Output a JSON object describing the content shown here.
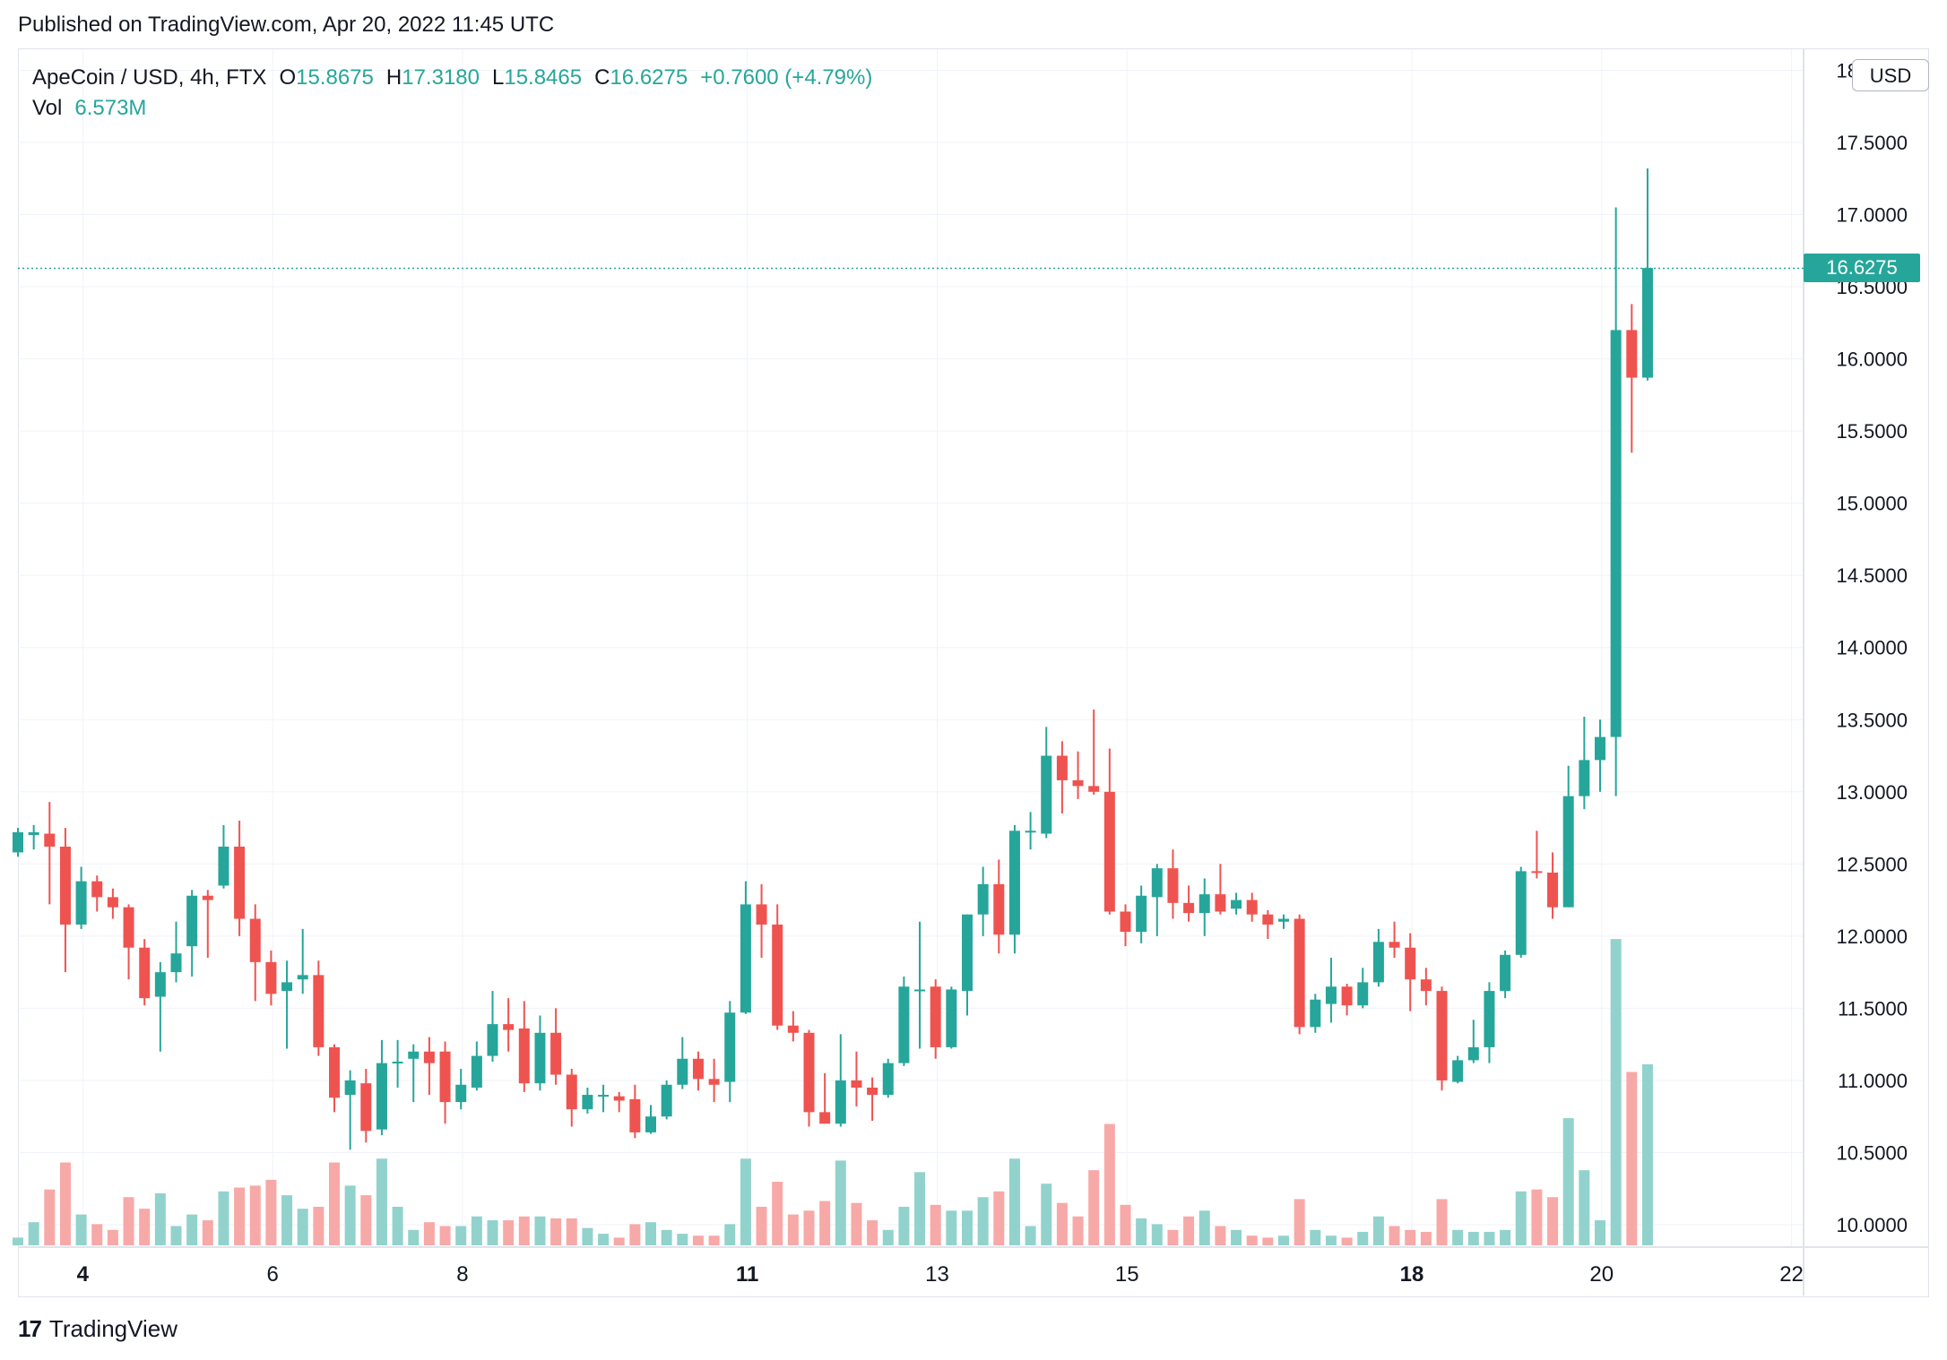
{
  "header": {
    "published": "Published on TradingView.com, Apr 20, 2022 11:45 UTC"
  },
  "legend": {
    "symbol": "ApeCoin / USD, 4h, FTX",
    "open_label": "O",
    "open": "15.8675",
    "high_label": "H",
    "high": "17.3180",
    "low_label": "L",
    "low": "15.8465",
    "close_label": "C",
    "close": "16.6275",
    "change": "+0.7600 (+4.79%)",
    "vol_label": "Vol",
    "vol": "6.573M"
  },
  "currency_button": "USD",
  "last_price_tag": "16.6275",
  "footer": {
    "logo": "17",
    "brand": "TradingView"
  },
  "colors": {
    "up": "#26a69a",
    "down": "#ef5350",
    "up_vol": "#92d2cc",
    "down_vol": "#f7a9a7",
    "grid": "#f0f3fa"
  },
  "chart_data": {
    "type": "candlestick",
    "title": "ApeCoin / USD, 4h, FTX",
    "xlabel": "",
    "ylabel": "",
    "ylim": [
      9.9,
      18.5
    ],
    "y_ticks": [
      "10.0000",
      "10.5000",
      "11.0000",
      "11.5000",
      "12.0000",
      "12.5000",
      "13.0000",
      "13.5000",
      "14.0000",
      "14.5000",
      "15.0000",
      "15.5000",
      "16.0000",
      "16.5000",
      "17.0000",
      "17.5000",
      "18.0000"
    ],
    "x_ticks": [
      {
        "label": "4",
        "idx": 4.1,
        "bold": true
      },
      {
        "label": "6",
        "idx": 16.1,
        "bold": false
      },
      {
        "label": "8",
        "idx": 28.1,
        "bold": false
      },
      {
        "label": "11",
        "idx": 46.1,
        "bold": true
      },
      {
        "label": "13",
        "idx": 58.1,
        "bold": false
      },
      {
        "label": "15",
        "idx": 70.1,
        "bold": false
      },
      {
        "label": "18",
        "idx": 88.1,
        "bold": true
      },
      {
        "label": "20",
        "idx": 100.1,
        "bold": false
      },
      {
        "label": "22",
        "idx": 112.1,
        "bold": false
      }
    ],
    "grid": true,
    "last_price": 16.6275,
    "candles": [
      {
        "o": 12.58,
        "h": 12.75,
        "l": 12.55,
        "c": 12.72,
        "v": 0.4
      },
      {
        "o": 12.7,
        "h": 12.77,
        "l": 12.6,
        "c": 12.72,
        "v": 1.2
      },
      {
        "o": 12.71,
        "h": 12.93,
        "l": 12.22,
        "c": 12.62,
        "v": 2.9
      },
      {
        "o": 12.62,
        "h": 12.75,
        "l": 11.75,
        "c": 12.08,
        "v": 4.3
      },
      {
        "o": 12.08,
        "h": 12.48,
        "l": 12.05,
        "c": 12.38,
        "v": 1.6
      },
      {
        "o": 12.38,
        "h": 12.42,
        "l": 12.17,
        "c": 12.27,
        "v": 1.1
      },
      {
        "o": 12.27,
        "h": 12.33,
        "l": 12.12,
        "c": 12.2,
        "v": 0.8
      },
      {
        "o": 12.2,
        "h": 12.22,
        "l": 11.7,
        "c": 11.92,
        "v": 2.5
      },
      {
        "o": 11.92,
        "h": 11.98,
        "l": 11.52,
        "c": 11.57,
        "v": 1.9
      },
      {
        "o": 11.58,
        "h": 11.82,
        "l": 11.2,
        "c": 11.75,
        "v": 2.7
      },
      {
        "o": 11.75,
        "h": 12.1,
        "l": 11.68,
        "c": 11.88,
        "v": 1.0
      },
      {
        "o": 11.93,
        "h": 12.32,
        "l": 11.72,
        "c": 12.28,
        "v": 1.6
      },
      {
        "o": 12.28,
        "h": 12.32,
        "l": 11.85,
        "c": 12.25,
        "v": 1.3
      },
      {
        "o": 12.35,
        "h": 12.77,
        "l": 12.33,
        "c": 12.62,
        "v": 2.8
      },
      {
        "o": 12.62,
        "h": 12.8,
        "l": 12.0,
        "c": 12.12,
        "v": 3.0
      },
      {
        "o": 12.12,
        "h": 12.22,
        "l": 11.55,
        "c": 11.82,
        "v": 3.1
      },
      {
        "o": 11.82,
        "h": 11.9,
        "l": 11.52,
        "c": 11.6,
        "v": 3.4
      },
      {
        "o": 11.62,
        "h": 11.83,
        "l": 11.22,
        "c": 11.68,
        "v": 2.6
      },
      {
        "o": 11.7,
        "h": 12.05,
        "l": 11.6,
        "c": 11.73,
        "v": 1.9
      },
      {
        "o": 11.73,
        "h": 11.83,
        "l": 11.17,
        "c": 11.23,
        "v": 2.0
      },
      {
        "o": 11.23,
        "h": 11.25,
        "l": 10.78,
        "c": 10.88,
        "v": 4.3
      },
      {
        "o": 10.9,
        "h": 11.07,
        "l": 10.52,
        "c": 11.0,
        "v": 3.1
      },
      {
        "o": 10.98,
        "h": 11.08,
        "l": 10.57,
        "c": 10.65,
        "v": 2.6
      },
      {
        "o": 10.66,
        "h": 11.28,
        "l": 10.62,
        "c": 11.12,
        "v": 4.5
      },
      {
        "o": 11.12,
        "h": 11.28,
        "l": 10.95,
        "c": 11.13,
        "v": 2.0
      },
      {
        "o": 11.15,
        "h": 11.25,
        "l": 10.85,
        "c": 11.2,
        "v": 0.8
      },
      {
        "o": 11.2,
        "h": 11.3,
        "l": 10.9,
        "c": 11.12,
        "v": 1.2
      },
      {
        "o": 11.2,
        "h": 11.27,
        "l": 10.7,
        "c": 10.85,
        "v": 1.0
      },
      {
        "o": 10.85,
        "h": 11.08,
        "l": 10.8,
        "c": 10.97,
        "v": 1.0
      },
      {
        "o": 10.95,
        "h": 11.27,
        "l": 10.93,
        "c": 11.17,
        "v": 1.5
      },
      {
        "o": 11.17,
        "h": 11.62,
        "l": 11.13,
        "c": 11.39,
        "v": 1.3
      },
      {
        "o": 11.39,
        "h": 11.57,
        "l": 11.2,
        "c": 11.35,
        "v": 1.3
      },
      {
        "o": 11.36,
        "h": 11.55,
        "l": 10.92,
        "c": 10.98,
        "v": 1.5
      },
      {
        "o": 10.98,
        "h": 11.45,
        "l": 10.93,
        "c": 11.33,
        "v": 1.5
      },
      {
        "o": 11.33,
        "h": 11.5,
        "l": 10.97,
        "c": 11.04,
        "v": 1.4
      },
      {
        "o": 11.04,
        "h": 11.08,
        "l": 10.68,
        "c": 10.8,
        "v": 1.4
      },
      {
        "o": 10.8,
        "h": 10.95,
        "l": 10.77,
        "c": 10.9,
        "v": 0.9
      },
      {
        "o": 10.89,
        "h": 10.97,
        "l": 10.78,
        "c": 10.9,
        "v": 0.6
      },
      {
        "o": 10.89,
        "h": 10.92,
        "l": 10.78,
        "c": 10.86,
        "v": 0.4
      },
      {
        "o": 10.87,
        "h": 10.97,
        "l": 10.6,
        "c": 10.64,
        "v": 1.1
      },
      {
        "o": 10.64,
        "h": 10.83,
        "l": 10.63,
        "c": 10.75,
        "v": 1.2
      },
      {
        "o": 10.75,
        "h": 11.0,
        "l": 10.73,
        "c": 10.97,
        "v": 0.8
      },
      {
        "o": 10.97,
        "h": 11.3,
        "l": 10.94,
        "c": 11.15,
        "v": 0.6
      },
      {
        "o": 11.15,
        "h": 11.2,
        "l": 10.93,
        "c": 11.01,
        "v": 0.5
      },
      {
        "o": 11.01,
        "h": 11.15,
        "l": 10.85,
        "c": 10.97,
        "v": 0.5
      },
      {
        "o": 10.99,
        "h": 11.55,
        "l": 10.85,
        "c": 11.47,
        "v": 1.1
      },
      {
        "o": 11.47,
        "h": 12.38,
        "l": 11.46,
        "c": 12.22,
        "v": 4.5
      },
      {
        "o": 12.22,
        "h": 12.36,
        "l": 11.85,
        "c": 12.08,
        "v": 2.0
      },
      {
        "o": 12.08,
        "h": 12.22,
        "l": 11.35,
        "c": 11.38,
        "v": 3.3
      },
      {
        "o": 11.38,
        "h": 11.48,
        "l": 11.27,
        "c": 11.33,
        "v": 1.6
      },
      {
        "o": 11.33,
        "h": 11.35,
        "l": 10.68,
        "c": 10.78,
        "v": 1.8
      },
      {
        "o": 10.78,
        "h": 11.05,
        "l": 10.7,
        "c": 10.7,
        "v": 2.3
      },
      {
        "o": 10.7,
        "h": 11.32,
        "l": 10.68,
        "c": 11.0,
        "v": 4.4
      },
      {
        "o": 11.0,
        "h": 11.2,
        "l": 10.82,
        "c": 10.95,
        "v": 2.2
      },
      {
        "o": 10.95,
        "h": 11.02,
        "l": 10.72,
        "c": 10.9,
        "v": 1.3
      },
      {
        "o": 10.9,
        "h": 11.15,
        "l": 10.88,
        "c": 11.12,
        "v": 0.8
      },
      {
        "o": 11.12,
        "h": 11.72,
        "l": 11.1,
        "c": 11.65,
        "v": 2.0
      },
      {
        "o": 11.62,
        "h": 12.1,
        "l": 11.22,
        "c": 11.63,
        "v": 3.8
      },
      {
        "o": 11.65,
        "h": 11.7,
        "l": 11.15,
        "c": 11.23,
        "v": 2.1
      },
      {
        "o": 11.23,
        "h": 11.65,
        "l": 11.22,
        "c": 11.63,
        "v": 1.8
      },
      {
        "o": 11.62,
        "h": 12.15,
        "l": 11.45,
        "c": 12.15,
        "v": 1.8
      },
      {
        "o": 12.15,
        "h": 12.48,
        "l": 12.0,
        "c": 12.36,
        "v": 2.5
      },
      {
        "o": 12.36,
        "h": 12.53,
        "l": 11.88,
        "c": 12.01,
        "v": 2.8
      },
      {
        "o": 12.01,
        "h": 12.77,
        "l": 11.88,
        "c": 12.73,
        "v": 4.5
      },
      {
        "o": 12.73,
        "h": 12.86,
        "l": 12.6,
        "c": 12.73,
        "v": 1.0
      },
      {
        "o": 12.71,
        "h": 13.45,
        "l": 12.68,
        "c": 13.25,
        "v": 3.2
      },
      {
        "o": 13.25,
        "h": 13.35,
        "l": 12.85,
        "c": 13.08,
        "v": 2.2
      },
      {
        "o": 13.08,
        "h": 13.28,
        "l": 12.95,
        "c": 13.04,
        "v": 1.5
      },
      {
        "o": 13.04,
        "h": 13.57,
        "l": 12.98,
        "c": 13.0,
        "v": 3.9
      },
      {
        "o": 13.0,
        "h": 13.3,
        "l": 12.15,
        "c": 12.17,
        "v": 6.3
      },
      {
        "o": 12.17,
        "h": 12.22,
        "l": 11.93,
        "c": 12.03,
        "v": 2.1
      },
      {
        "o": 12.03,
        "h": 12.35,
        "l": 11.95,
        "c": 12.28,
        "v": 1.4
      },
      {
        "o": 12.27,
        "h": 12.5,
        "l": 12.0,
        "c": 12.47,
        "v": 1.1
      },
      {
        "o": 12.47,
        "h": 12.6,
        "l": 12.12,
        "c": 12.23,
        "v": 0.8
      },
      {
        "o": 12.23,
        "h": 12.35,
        "l": 12.1,
        "c": 12.16,
        "v": 1.5
      },
      {
        "o": 12.16,
        "h": 12.4,
        "l": 12.0,
        "c": 12.29,
        "v": 1.8
      },
      {
        "o": 12.29,
        "h": 12.5,
        "l": 12.15,
        "c": 12.17,
        "v": 1.0
      },
      {
        "o": 12.19,
        "h": 12.3,
        "l": 12.15,
        "c": 12.25,
        "v": 0.8
      },
      {
        "o": 12.25,
        "h": 12.3,
        "l": 12.1,
        "c": 12.15,
        "v": 0.5
      },
      {
        "o": 12.15,
        "h": 12.18,
        "l": 11.98,
        "c": 12.08,
        "v": 0.4
      },
      {
        "o": 12.1,
        "h": 12.15,
        "l": 12.05,
        "c": 12.12,
        "v": 0.5
      },
      {
        "o": 12.12,
        "h": 12.15,
        "l": 11.32,
        "c": 11.37,
        "v": 2.4
      },
      {
        "o": 11.37,
        "h": 11.6,
        "l": 11.33,
        "c": 11.56,
        "v": 0.8
      },
      {
        "o": 11.53,
        "h": 11.85,
        "l": 11.4,
        "c": 11.65,
        "v": 0.5
      },
      {
        "o": 11.65,
        "h": 11.67,
        "l": 11.45,
        "c": 11.52,
        "v": 0.4
      },
      {
        "o": 11.52,
        "h": 11.78,
        "l": 11.5,
        "c": 11.68,
        "v": 0.7
      },
      {
        "o": 11.68,
        "h": 12.05,
        "l": 11.65,
        "c": 11.96,
        "v": 1.5
      },
      {
        "o": 11.96,
        "h": 12.1,
        "l": 11.85,
        "c": 11.92,
        "v": 1.0
      },
      {
        "o": 11.92,
        "h": 12.02,
        "l": 11.48,
        "c": 11.7,
        "v": 0.8
      },
      {
        "o": 11.7,
        "h": 11.78,
        "l": 11.52,
        "c": 11.62,
        "v": 0.7
      },
      {
        "o": 11.62,
        "h": 11.65,
        "l": 10.93,
        "c": 11.0,
        "v": 2.4
      },
      {
        "o": 10.99,
        "h": 11.17,
        "l": 10.98,
        "c": 11.14,
        "v": 0.8
      },
      {
        "o": 11.14,
        "h": 11.42,
        "l": 11.12,
        "c": 11.23,
        "v": 0.7
      },
      {
        "o": 11.23,
        "h": 11.68,
        "l": 11.12,
        "c": 11.62,
        "v": 0.7
      },
      {
        "o": 11.62,
        "h": 11.9,
        "l": 11.57,
        "c": 11.87,
        "v": 0.8
      },
      {
        "o": 11.87,
        "h": 12.48,
        "l": 11.85,
        "c": 12.45,
        "v": 2.8
      },
      {
        "o": 12.45,
        "h": 12.73,
        "l": 12.4,
        "c": 12.44,
        "v": 2.9
      },
      {
        "o": 12.44,
        "h": 12.58,
        "l": 12.12,
        "c": 12.2,
        "v": 2.5
      },
      {
        "o": 12.2,
        "h": 13.18,
        "l": 12.2,
        "c": 12.97,
        "v": 6.6
      },
      {
        "o": 12.97,
        "h": 13.52,
        "l": 12.88,
        "c": 13.22,
        "v": 3.9
      },
      {
        "o": 13.22,
        "h": 13.5,
        "l": 13.0,
        "c": 13.38,
        "v": 1.3
      },
      {
        "o": 13.38,
        "h": 17.05,
        "l": 12.97,
        "c": 16.2,
        "v": 15.9
      },
      {
        "o": 16.2,
        "h": 16.38,
        "l": 15.35,
        "c": 15.87,
        "v": 9.0
      },
      {
        "o": 15.87,
        "h": 17.32,
        "l": 15.85,
        "c": 16.63,
        "v": 9.4
      }
    ]
  }
}
